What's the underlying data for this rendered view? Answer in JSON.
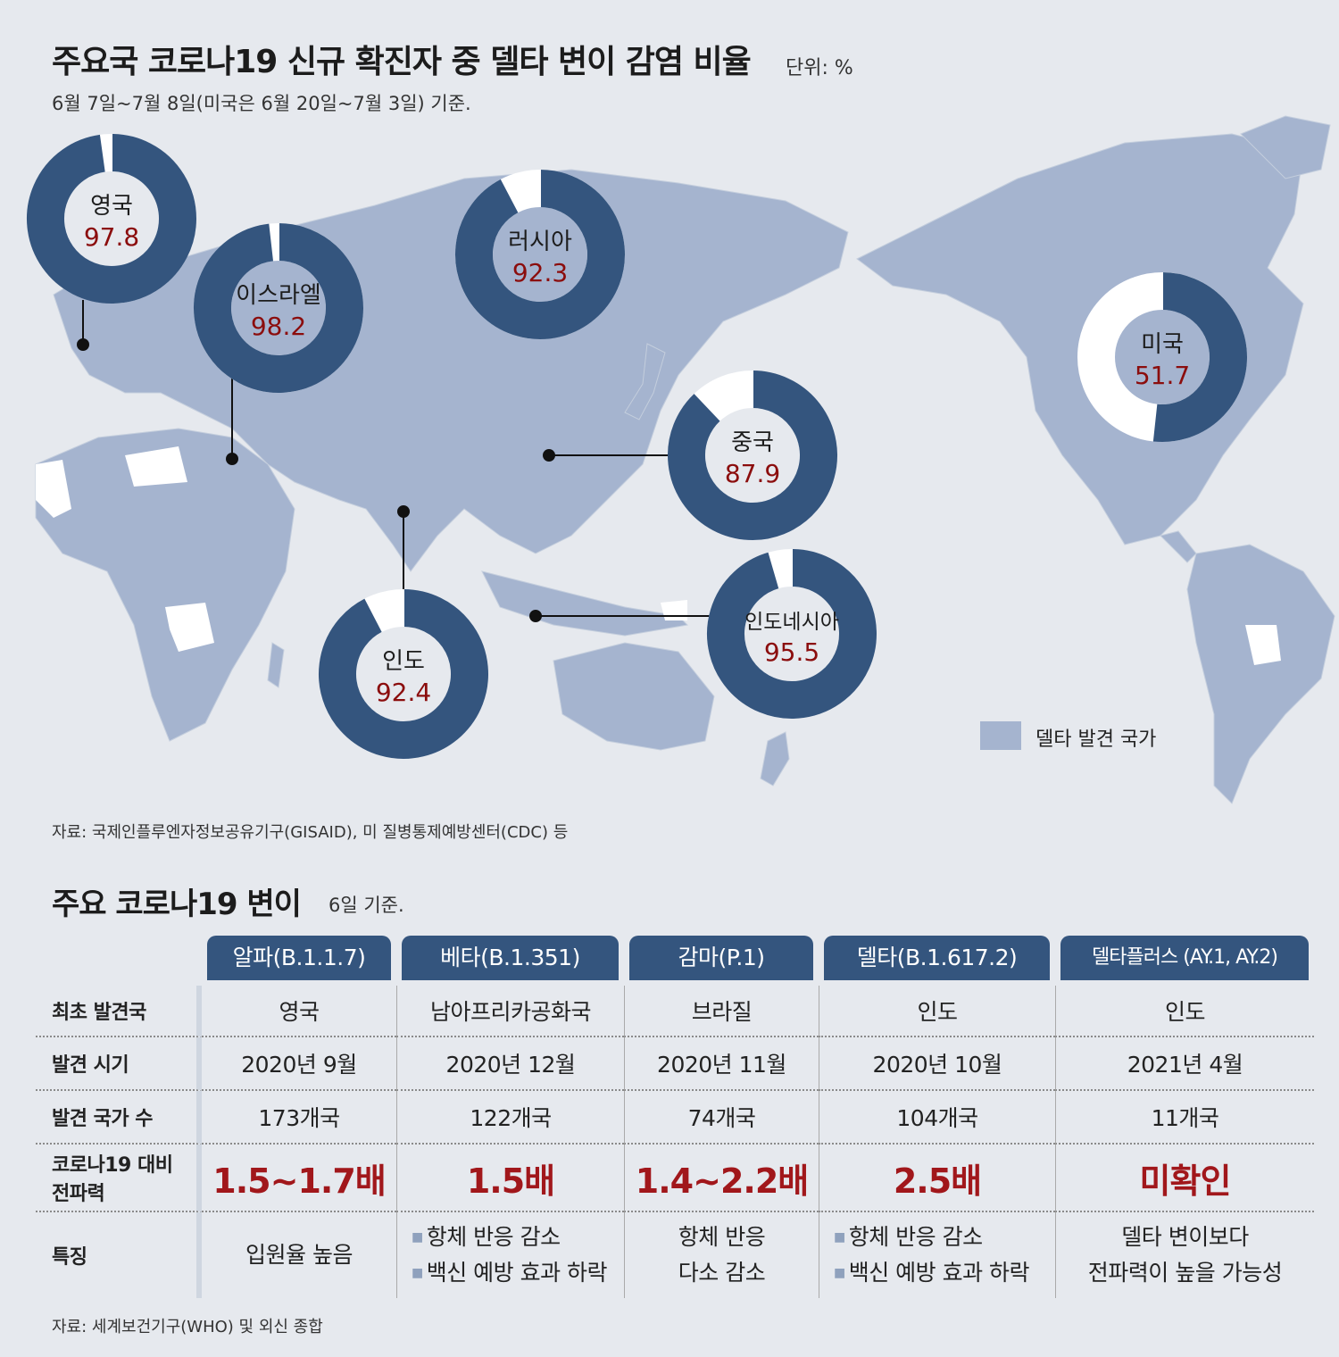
{
  "title": "주요국 코로나19 신규 확진자 중 델타 변이 감염 비율",
  "unit": "단위: %",
  "subtitle": "6월 7일~7월 8일(미국은 6월 20일~7월 3일) 기준.",
  "colors": {
    "ring_dark": "#34557e",
    "ring_light": "#ffffff",
    "map_land": "#a5b4cf",
    "value_red": "#8b0d0d",
    "table_red": "#a1171b"
  },
  "chart_data": {
    "type": "pie",
    "subtype": "donut",
    "title": "주요국 코로나19 신규 확진자 중 델타 변이 감염 비율",
    "unit": "%",
    "categories": [
      "영국",
      "이스라엘",
      "러시아",
      "미국",
      "중국",
      "인도",
      "인도네시아"
    ],
    "values": [
      97.8,
      98.2,
      92.3,
      51.7,
      87.9,
      92.4,
      95.5
    ],
    "legend": "델타 발견 국가"
  },
  "legend_label": "델타 발견 국가",
  "source_map": "자료: 국제인플루엔자정보공유기구(GISAID), 미 질병통제예방센터(CDC) 등",
  "table_title": "주요 코로나19 변이",
  "table_subtitle": "6일 기준.",
  "variants": [
    "알파(B.1.1.7)",
    "베타(B.1.351)",
    "감마(P.1)",
    "델타(B.1.617.2)",
    "델타플러스 (AY.1, AY.2)"
  ],
  "rows": {
    "origin": {
      "label": "최초 발견국",
      "values": [
        "영국",
        "남아프리카공화국",
        "브라질",
        "인도",
        "인도"
      ]
    },
    "date": {
      "label": "발견 시기",
      "values": [
        "2020년 9월",
        "2020년 12월",
        "2020년 11월",
        "2020년 10월",
        "2021년 4월"
      ]
    },
    "countries": {
      "label": "발견 국가 수",
      "values": [
        "173개국",
        "122개국",
        "74개국",
        "104개국",
        "11개국"
      ]
    },
    "transmissibility": {
      "label_line1": "코로나19 대비",
      "label_line2": "전파력",
      "values": [
        "1.5~1.7배",
        "1.5배",
        "1.4~2.2배",
        "2.5배",
        "미확인"
      ]
    },
    "features": {
      "label": "특징",
      "alpha": "입원율 높음",
      "beta": [
        "항체 반응 감소",
        "백신 예방 효과 하락"
      ],
      "gamma": [
        "항체 반응",
        "다소 감소"
      ],
      "delta": [
        "항체 반응 감소",
        "백신 예방 효과 하락"
      ],
      "deltaplus": [
        "델타 변이보다",
        "전파력이 높을 가능성"
      ]
    }
  },
  "source_table": "자료: 세계보건기구(WHO) 및 외신 종합"
}
